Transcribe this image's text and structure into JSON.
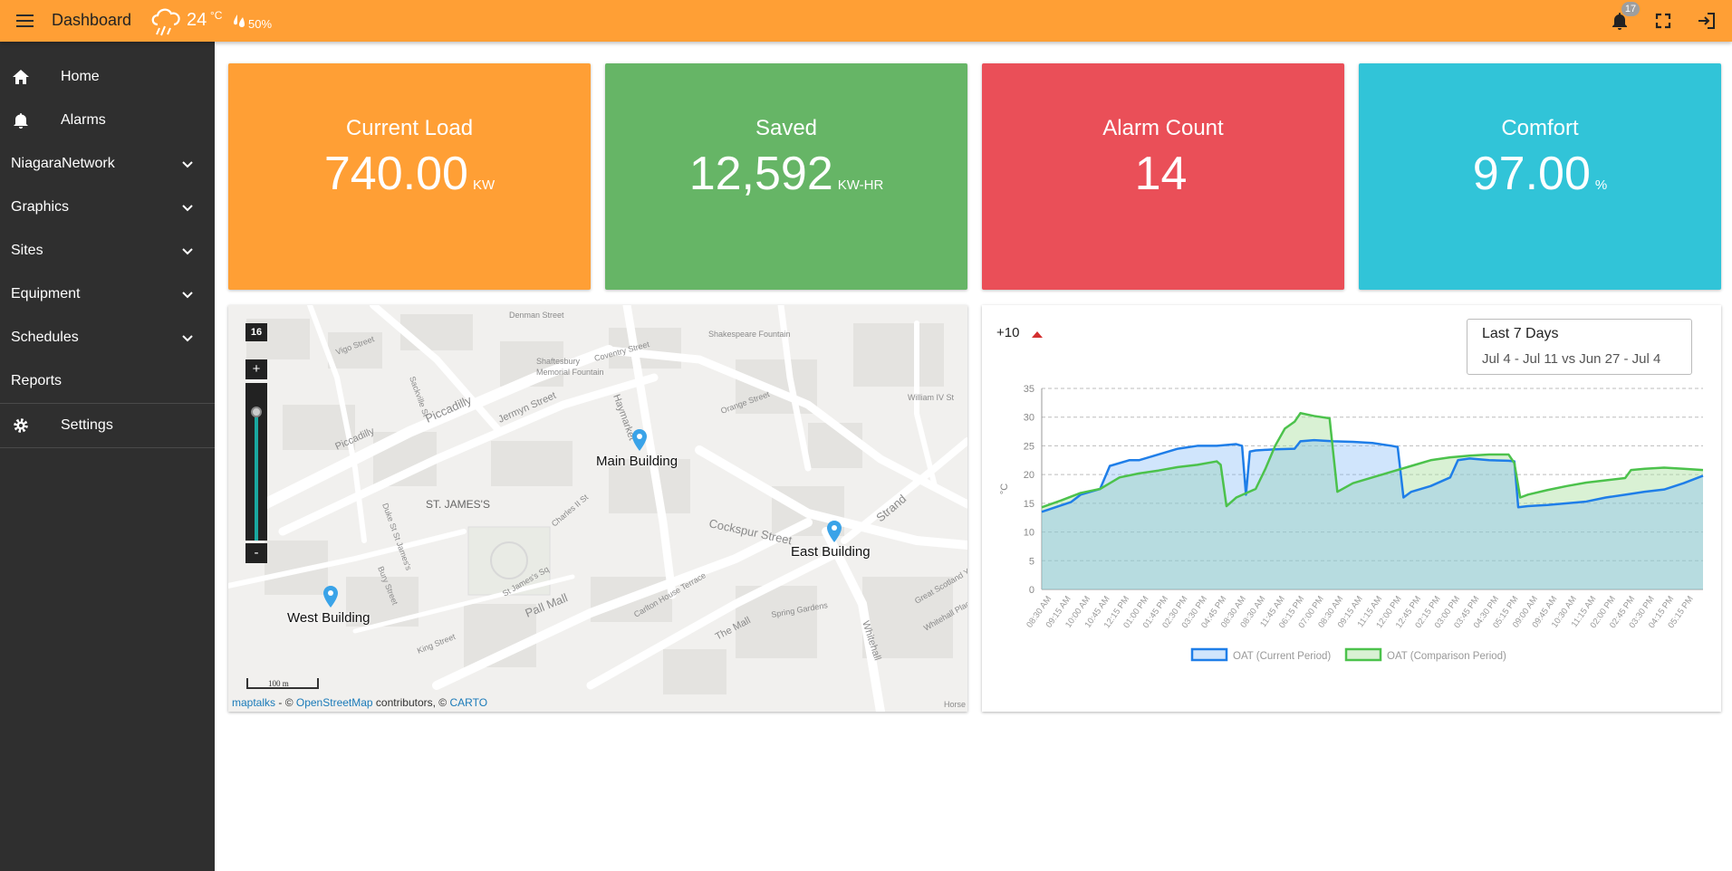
{
  "header": {
    "title": "Dashboard",
    "temperature": "24",
    "temperature_unit": "°C",
    "humidity": "50%",
    "notification_count": "17",
    "icons": {
      "menu": "menu-icon",
      "weather": "cloud-rain-icon",
      "humidity": "water-drops-icon",
      "notifications": "bell-icon",
      "fullscreen": "fullscreen-icon",
      "logout": "logout-icon"
    }
  },
  "sidebar": {
    "items": [
      {
        "label": "Home",
        "icon": "home-icon",
        "expandable": false
      },
      {
        "label": "Alarms",
        "icon": "bell-icon",
        "expandable": false
      },
      {
        "label": "NiagaraNetwork",
        "expandable": true
      },
      {
        "label": "Graphics",
        "expandable": true
      },
      {
        "label": "Sites",
        "expandable": true
      },
      {
        "label": "Equipment",
        "expandable": true
      },
      {
        "label": "Schedules",
        "expandable": true
      },
      {
        "label": "Reports",
        "expandable": false
      },
      {
        "label": "Settings",
        "icon": "gear-icon",
        "expandable": false
      }
    ]
  },
  "kpis": [
    {
      "title": "Current Load",
      "value": "740.00",
      "unit": "KW",
      "color": "#ff9f35"
    },
    {
      "title": "Saved",
      "value": "12,592",
      "unit": "KW-HR",
      "color": "#66b566"
    },
    {
      "title": "Alarm Count",
      "value": "14",
      "unit": "",
      "color": "#ea4f58"
    },
    {
      "title": "Comfort",
      "value": "97.00",
      "unit": "%",
      "color": "#31c4d8"
    }
  ],
  "map": {
    "zoom_level": "16",
    "zoom_in": "+",
    "zoom_out": "-",
    "zoom_fraction": 0.82,
    "buildings": [
      "Main Building",
      "East Building",
      "West Building"
    ],
    "street_labels": [
      "Piccadilly",
      "Piccadilly",
      "Jermyn Street",
      "ST. JAMES'S",
      "Pall Mall",
      "Cockspur Street",
      "Strand",
      "The Mall",
      "Whitehall",
      "Haymarket",
      "King Street",
      "Duke St St James's",
      "Coventry Street",
      "Denman Street",
      "Vigo Street",
      "Shaftesbury Memorial Fountain",
      "Shakespeare Fountain",
      "Spring Gardens",
      "Carlton House Terrace",
      "William IV St",
      "Orange Street",
      "Charles II St",
      "St James's Sq",
      "Bury Street",
      "Sackville St",
      "Great Scotland Yard",
      "Whitehall Place",
      "Horse"
    ],
    "scale_label": "100 m",
    "attribution": {
      "link1": "maptalks",
      "sep1": " - © ",
      "link2": "OpenStreetMap",
      "sep2": " contributors, © ",
      "link3": "CARTO"
    }
  },
  "chart_panel": {
    "delta": "+10",
    "delta_direction": "up",
    "period_title": "Last 7 Days",
    "period_range": "Jul 4 - Jul 11 vs Jun 27 - Jul 4"
  },
  "chart_data": {
    "type": "area",
    "ylabel": "°C",
    "ylim": [
      0,
      35
    ],
    "yticks": [
      0,
      5,
      10,
      15,
      20,
      25,
      30,
      35
    ],
    "grid": true,
    "legend_position": "bottom",
    "x": [
      "08:30 AM",
      "09:15 AM",
      "10:00 AM",
      "10:45 AM",
      "12:15 PM",
      "01:00 PM",
      "01:45 PM",
      "02:30 PM",
      "03:30 PM",
      "04:45 PM",
      "08:30 AM",
      "08:30 AM",
      "11:45 AM",
      "06:15 PM",
      "07:00 PM",
      "08:30 AM",
      "09:15 AM",
      "11:15 AM",
      "12:00 PM",
      "12:45 PM",
      "02:15 PM",
      "03:00 PM",
      "03:45 PM",
      "04:30 PM",
      "05:15 PM",
      "09:00 AM",
      "09:45 AM",
      "10:30 AM",
      "11:15 AM",
      "02:00 PM",
      "02:45 PM",
      "03:30 PM",
      "04:15 PM",
      "05:15 PM"
    ],
    "series": [
      {
        "name": "OAT (Current Period)",
        "color": "#1f7ee8",
        "fill": "rgba(120,180,245,0.35)",
        "values": [
          [
            0,
            13.5
          ],
          [
            1.5,
            15.2
          ],
          [
            2,
            16.5
          ],
          [
            3,
            17.5
          ],
          [
            3.5,
            21.5
          ],
          [
            4.5,
            22.5
          ],
          [
            5,
            22.5
          ],
          [
            6,
            23.5
          ],
          [
            7,
            24.5
          ],
          [
            8,
            25
          ],
          [
            9,
            25
          ],
          [
            10,
            25.3
          ],
          [
            10.3,
            25
          ],
          [
            10.5,
            16.5
          ],
          [
            10.7,
            24
          ],
          [
            11,
            24.2
          ],
          [
            12,
            24.4
          ],
          [
            13,
            24.5
          ],
          [
            13.3,
            25.8
          ],
          [
            14,
            26
          ],
          [
            15,
            25.8
          ],
          [
            16,
            25.7
          ],
          [
            17,
            25.5
          ],
          [
            18,
            25
          ],
          [
            18.3,
            24.8
          ],
          [
            18.6,
            16
          ],
          [
            19,
            17
          ],
          [
            20,
            18
          ],
          [
            21,
            19.5
          ],
          [
            21.4,
            22.5
          ],
          [
            22,
            22.8
          ],
          [
            23,
            22.5
          ],
          [
            24,
            22.4
          ],
          [
            24.3,
            22.3
          ],
          [
            24.5,
            14.3
          ],
          [
            25,
            14.5
          ],
          [
            26,
            14.7
          ],
          [
            27,
            15
          ],
          [
            28,
            15.3
          ],
          [
            29,
            16
          ],
          [
            30,
            16.5
          ],
          [
            31,
            17
          ],
          [
            32,
            17.4
          ],
          [
            33,
            18.5
          ],
          [
            34,
            19.8
          ]
        ]
      },
      {
        "name": "OAT (Comparison Period)",
        "color": "#4cc24c",
        "fill": "rgba(170,225,160,0.45)",
        "values": [
          [
            0,
            14.3
          ],
          [
            1,
            15.5
          ],
          [
            2,
            16.8
          ],
          [
            3,
            17.5
          ],
          [
            3.5,
            18.5
          ],
          [
            4,
            19.5
          ],
          [
            5,
            20.2
          ],
          [
            6,
            20.7
          ],
          [
            7,
            21.3
          ],
          [
            8,
            21.7
          ],
          [
            9,
            22.3
          ],
          [
            9.2,
            21.7
          ],
          [
            9.5,
            14.5
          ],
          [
            10,
            16
          ],
          [
            11,
            17.5
          ],
          [
            11.5,
            21
          ],
          [
            12,
            25
          ],
          [
            12.5,
            28
          ],
          [
            13,
            29.2
          ],
          [
            13.3,
            30.7
          ],
          [
            14,
            30.2
          ],
          [
            14.8,
            29.8
          ],
          [
            15.2,
            17
          ],
          [
            16,
            18.5
          ],
          [
            17,
            19.5
          ],
          [
            18,
            20.5
          ],
          [
            19,
            21.5
          ],
          [
            20,
            22.5
          ],
          [
            21,
            23
          ],
          [
            22,
            23.3
          ],
          [
            23,
            23.5
          ],
          [
            24,
            23.5
          ],
          [
            24.3,
            22
          ],
          [
            24.6,
            16
          ],
          [
            25,
            16.5
          ],
          [
            26,
            17.3
          ],
          [
            27,
            18
          ],
          [
            28,
            18.6
          ],
          [
            29,
            19
          ],
          [
            30,
            19.4
          ],
          [
            30.3,
            20.8
          ],
          [
            31,
            21
          ],
          [
            32,
            21.2
          ],
          [
            33,
            21
          ],
          [
            34,
            20.8
          ]
        ]
      }
    ]
  }
}
